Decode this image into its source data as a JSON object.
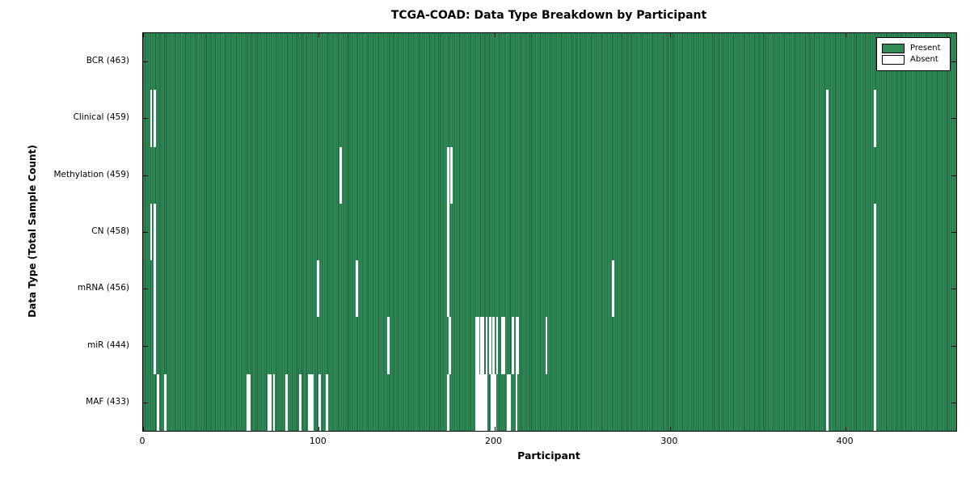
{
  "chart_data": {
    "type": "heatmap",
    "title": "TCGA-COAD: Data Type Breakdown by Participant",
    "xlabel": "Participant",
    "ylabel": "Data Type (Total Sample Count)",
    "total_participants": 463,
    "xlim": [
      0,
      462
    ],
    "x_ticks": [
      0,
      100,
      200,
      300,
      400
    ],
    "x_tick_labels": [
      "0",
      "100",
      "200",
      "300",
      "400"
    ],
    "grid": false,
    "legend_position": "upper right",
    "legend": [
      {
        "label": "Present",
        "color": "#2e8b57"
      },
      {
        "label": "Absent",
        "color": "#ffffff"
      }
    ],
    "colors": {
      "present_fill": "#2e8b57",
      "present_edge": "#1d5c39",
      "absent_fill": "#ffffff",
      "axis": "#000000",
      "background": "#ffffff"
    },
    "rows": [
      {
        "name": "BCR",
        "label": "BCR (463)",
        "present_count": 463,
        "absent_count": 0,
        "absent_participants": []
      },
      {
        "name": "Clinical",
        "label": "Clinical (459)",
        "present_count": 459,
        "absent_count": 4,
        "absent_participants": [
          4,
          6,
          389,
          416
        ]
      },
      {
        "name": "Methylation",
        "label": "Methylation (459)",
        "present_count": 459,
        "absent_count": 4,
        "absent_participants": [
          112,
          173,
          175,
          389
        ]
      },
      {
        "name": "CN",
        "label": "CN (458)",
        "present_count": 458,
        "absent_count": 5,
        "absent_participants": [
          4,
          6,
          173,
          389,
          416
        ]
      },
      {
        "name": "mRNA",
        "label": "mRNA (456)",
        "present_count": 456,
        "absent_count": 7,
        "absent_participants": [
          6,
          99,
          121,
          173,
          267,
          389,
          416
        ]
      },
      {
        "name": "miR",
        "label": "miR (444)",
        "present_count": 444,
        "absent_count": 19,
        "absent_participants": [
          6,
          139,
          174,
          189,
          190,
          192,
          193,
          195,
          197,
          199,
          201,
          204,
          205,
          210,
          212,
          213,
          229,
          389,
          416
        ]
      },
      {
        "name": "MAF",
        "label": "MAF (433)",
        "present_count": 433,
        "absent_count": 30,
        "absent_participants": [
          8,
          12,
          59,
          60,
          71,
          72,
          74,
          81,
          89,
          94,
          95,
          96,
          100,
          104,
          173,
          189,
          190,
          191,
          192,
          193,
          194,
          195,
          198,
          199,
          200,
          207,
          208,
          212,
          389,
          416
        ]
      }
    ]
  }
}
